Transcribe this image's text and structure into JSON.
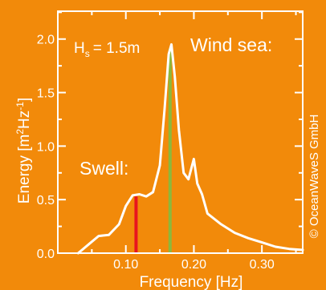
{
  "colors": {
    "background": "#f28a0a",
    "foreground": "#ffffff",
    "swell_marker": "#e8141e",
    "windsea_marker": "#8cb83c"
  },
  "chart_data": {
    "type": "line",
    "title": "",
    "xlabel": "Frequency [Hz]",
    "ylabel_main": "Energy [m",
    "ylabel_sup1": "2",
    "ylabel_mid": "Hz",
    "ylabel_sup2": "-1",
    "ylabel_end": "]",
    "xlim": [
      0.0,
      0.36
    ],
    "ylim": [
      0.0,
      2.26
    ],
    "xticks": [
      0.1,
      0.2,
      0.3
    ],
    "xtick_labels": [
      "0.10",
      "0.20",
      "0.30"
    ],
    "xminor": [
      0.05,
      0.15,
      0.25,
      0.35
    ],
    "yticks": [
      0.0,
      0.5,
      1.0,
      1.5,
      2.0
    ],
    "ytick_labels": [
      "0.0",
      "0.5",
      "1.0",
      "1.5",
      "2.0"
    ],
    "yminor": [
      0.25,
      0.75,
      1.25,
      1.75,
      2.25
    ],
    "grid": false,
    "series": [
      {
        "x": [
          0.03,
          0.045,
          0.06,
          0.075,
          0.09,
          0.1,
          0.11,
          0.12,
          0.13,
          0.14,
          0.15,
          0.157,
          0.163,
          0.167,
          0.172,
          0.178,
          0.185,
          0.192,
          0.2,
          0.205,
          0.212,
          0.22,
          0.24,
          0.26,
          0.28,
          0.3,
          0.32,
          0.34,
          0.36
        ],
        "y": [
          0.0,
          0.08,
          0.16,
          0.17,
          0.27,
          0.44,
          0.54,
          0.55,
          0.53,
          0.57,
          0.82,
          1.35,
          1.86,
          1.95,
          1.65,
          1.15,
          0.75,
          0.69,
          0.88,
          0.65,
          0.55,
          0.37,
          0.27,
          0.19,
          0.14,
          0.1,
          0.06,
          0.04,
          0.03
        ]
      }
    ],
    "markers": [
      {
        "x": 0.115,
        "y": 0.53,
        "color": "#e8141e"
      },
      {
        "x": 0.165,
        "y": 1.91,
        "color": "#8cb83c"
      }
    ],
    "annotations": {
      "hs_main": "H",
      "hs_sub": "s",
      "hs_value": "= 1.5m",
      "wind_sea": "Wind sea:",
      "swell": "Swell:"
    },
    "copyright": "© OceanWaveS GmbH"
  }
}
